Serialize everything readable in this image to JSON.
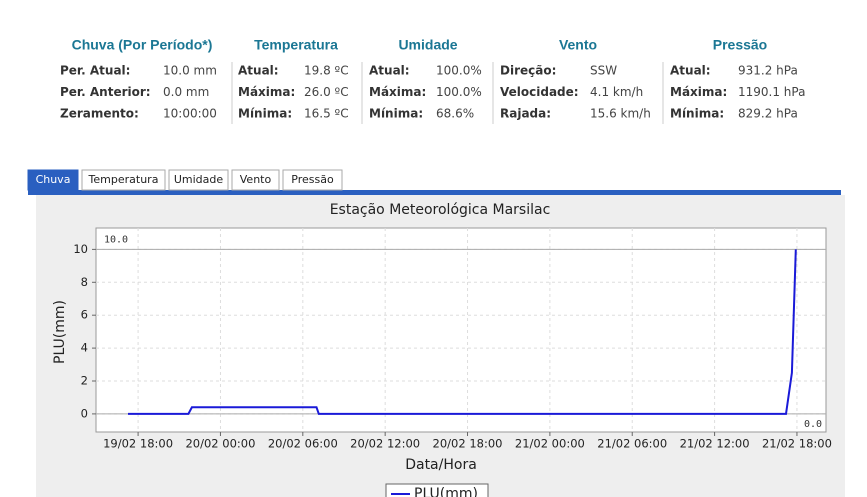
{
  "summary": [
    {
      "title": "Chuva (Por Período*)",
      "rows": [
        [
          "Per. Atual:",
          "10.0 mm"
        ],
        [
          "Per. Anterior:",
          "0.0 mm"
        ],
        [
          "Zeramento:",
          "10:00:00"
        ]
      ]
    },
    {
      "title": "Temperatura",
      "rows": [
        [
          "Atual:",
          "19.8 ºC"
        ],
        [
          "Máxima:",
          "26.0 ºC"
        ],
        [
          "Mínima:",
          "16.5 ºC"
        ]
      ]
    },
    {
      "title": "Umidade",
      "rows": [
        [
          "Atual:",
          "100.0%"
        ],
        [
          "Máxima:",
          "100.0%"
        ],
        [
          "Mínima:",
          "68.6%"
        ]
      ]
    },
    {
      "title": "Vento",
      "rows": [
        [
          "Direção:",
          "SSW"
        ],
        [
          "Velocidade:",
          "4.1 km/h"
        ],
        [
          "Rajada:",
          "15.6 km/h"
        ]
      ]
    },
    {
      "title": "Pressão",
      "rows": [
        [
          "Atual:",
          "931.2 hPa"
        ],
        [
          "Máxima:",
          "1190.1 hPa"
        ],
        [
          "Mínima:",
          "829.2 hPa"
        ]
      ]
    }
  ],
  "tabs": [
    "Chuva",
    "Temperatura",
    "Umidade",
    "Vento",
    "Pressão"
  ],
  "chart_data": {
    "type": "line",
    "title": "Estação Meteorológica Marsilac",
    "x_label": "Data/Hora",
    "y_label": "PLU(mm)",
    "x": [
      "19/02 17:16",
      "19/02 21:40",
      "19/02 21:55",
      "20/02 07:00",
      "20/02 07:10",
      "21/02 17:12",
      "21/02 17:38",
      "21/02 17:55"
    ],
    "series": [
      {
        "name": "PLU(mm)",
        "color": "#1a1ad8",
        "values": [
          0,
          0,
          0.4,
          0.4,
          0,
          0,
          2.5,
          10
        ]
      }
    ],
    "xlim": [
      "19/02 14:56",
      "21/02 20:07"
    ],
    "xticks": [
      "19/02 18:00",
      "20/02 00:00",
      "20/02 06:00",
      "20/02 12:00",
      "20/02 18:00",
      "21/02 00:00",
      "21/02 06:00",
      "21/02 12:00",
      "21/02 18:00"
    ],
    "ylim": [
      -1.1,
      11.3
    ],
    "yticks": [
      0,
      2,
      4,
      6,
      8,
      10
    ],
    "markers": [
      {
        "value": 10,
        "label": "10.0"
      },
      {
        "value": 0,
        "label": "0.0"
      }
    ],
    "grid": true
  }
}
